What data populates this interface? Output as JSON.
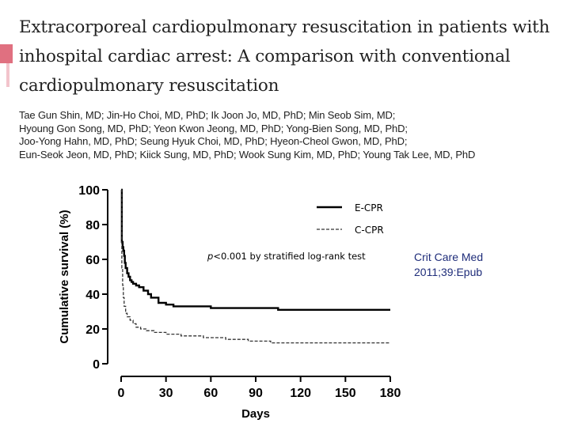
{
  "slide": {
    "accent_color": "#e07080",
    "title_lines": [
      "Extracorporeal cardiopulmonary resuscitation in patients with",
      "inhospital cardiac arrest: A comparison with conventional",
      "cardiopulmonary resuscitation"
    ],
    "author_lines": [
      "Tae Gun Shin, MD; Jin-Ho Choi, MD, PhD; Ik Joon Jo, MD, PhD; Min Seob Sim, MD;",
      "Hyoung Gon Song, MD, PhD; Yeon Kwon Jeong, MD, PhD; Yong-Bien Song, MD, PhD;",
      "Joo-Yong Hahn, MD, PhD; Seung Hyuk Choi, MD, PhD; Hyeon-Cheol Gwon, MD, PhD;",
      "Eun-Seok Jeon, MD, PhD; Kiick Sung, MD, PhD; Wook Sung Kim, MD, PhD; Young Tak Lee, MD, PhD"
    ],
    "citation_lines": [
      "Crit Care Med",
      "2011;39:Epub"
    ]
  },
  "chart_data": {
    "type": "line",
    "xlabel": "Days",
    "ylabel": "Cumulative survival (%)",
    "xlim": [
      0,
      180
    ],
    "ylim": [
      0,
      100
    ],
    "xticks": [
      0,
      30,
      60,
      90,
      120,
      150,
      180
    ],
    "yticks": [
      0,
      20,
      40,
      60,
      80,
      100
    ],
    "grid": false,
    "legend_position": "top-right",
    "annotation": "p<0.001 by stratified log-rank test",
    "series": [
      {
        "name": "E-CPR",
        "style": "solid",
        "color": "#000000",
        "x": [
          0,
          0.5,
          0.5,
          1,
          1,
          1.5,
          1.5,
          2,
          2,
          2.5,
          2.5,
          3,
          3,
          4,
          4,
          5,
          5,
          6,
          6,
          7,
          7,
          8,
          8,
          10,
          10,
          12,
          12,
          15,
          15,
          18,
          18,
          20,
          20,
          25,
          25,
          30,
          30,
          35,
          35,
          60,
          60,
          105,
          105,
          180
        ],
        "y": [
          100,
          100,
          70,
          70,
          67,
          67,
          65,
          65,
          62,
          62,
          58,
          58,
          55,
          55,
          52,
          52,
          50,
          50,
          48,
          48,
          47,
          47,
          46,
          46,
          45,
          45,
          44,
          44,
          42,
          42,
          40,
          40,
          38,
          38,
          35,
          35,
          34,
          34,
          33,
          33,
          32,
          32,
          31,
          31
        ]
      },
      {
        "name": "C-CPR",
        "style": "dashed",
        "color": "#333333",
        "x": [
          0,
          0.5,
          0.5,
          1,
          1,
          1.5,
          1.5,
          2,
          2,
          3,
          3,
          4,
          4,
          6,
          6,
          8,
          8,
          10,
          10,
          13,
          13,
          17,
          17,
          22,
          22,
          30,
          30,
          40,
          40,
          55,
          55,
          70,
          70,
          85,
          85,
          100,
          100,
          180
        ],
        "y": [
          100,
          100,
          55,
          55,
          45,
          45,
          38,
          38,
          33,
          33,
          29,
          29,
          27,
          27,
          25,
          25,
          23,
          23,
          21,
          21,
          20,
          20,
          19,
          19,
          18,
          18,
          17,
          17,
          16,
          16,
          15,
          15,
          14,
          14,
          13,
          13,
          12,
          12
        ]
      }
    ]
  }
}
